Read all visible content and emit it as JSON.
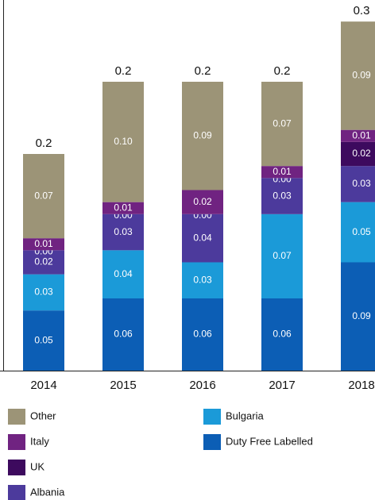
{
  "chart_data": {
    "type": "stacked_bar",
    "categories": [
      "2014",
      "2015",
      "2016",
      "2017",
      "2018"
    ],
    "ylim": [
      0,
      0.3
    ],
    "totals": [
      0.2,
      0.2,
      0.2,
      0.2,
      0.3
    ],
    "series": [
      {
        "name": "Duty Free Labelled",
        "color": "#0c5eb5",
        "values": [
          0.05,
          0.06,
          0.06,
          0.06,
          0.09
        ],
        "value_labels": [
          "0.05",
          "0.06",
          "0.06",
          "0.06",
          "0.09"
        ]
      },
      {
        "name": "Bulgaria",
        "color": "#1b9ad8",
        "values": [
          0.03,
          0.04,
          0.03,
          0.07,
          0.05
        ],
        "value_labels": [
          "0.03",
          "0.04",
          "0.03",
          "0.07",
          "0.05"
        ]
      },
      {
        "name": "Albania",
        "color": "#4c3a9c",
        "values": [
          0.02,
          0.03,
          0.04,
          0.03,
          0.03
        ],
        "value_labels": [
          "0.02",
          "0.03",
          "0.04",
          "0.03",
          "0.03"
        ]
      },
      {
        "name": "UK",
        "color": "#3d0a5e",
        "values": [
          0,
          0,
          0,
          0,
          0.02
        ],
        "value_labels": [
          "0.00",
          "0.00",
          "0.00",
          "0.00",
          "0.02"
        ]
      },
      {
        "name": "Italy",
        "color": "#702381",
        "values": [
          0.01,
          0.01,
          0.02,
          0.01,
          0.01
        ],
        "value_labels": [
          "0.01",
          "0.01",
          "0.02",
          "0.01",
          "0.01"
        ]
      },
      {
        "name": "Other",
        "color": "#9c9477",
        "values": [
          0.07,
          0.1,
          0.09,
          0.07,
          0.09
        ],
        "value_labels": [
          "0.07",
          "0.10",
          "0.09",
          "0.07",
          "0.09"
        ]
      }
    ]
  }
}
